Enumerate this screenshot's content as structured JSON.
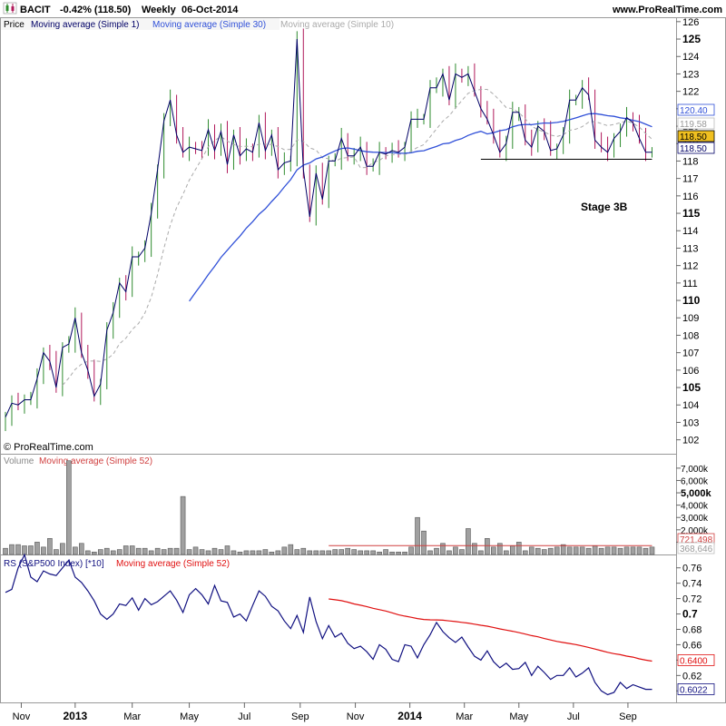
{
  "header": {
    "symbol": "BACIT",
    "change": "-0.42% (118.50)",
    "period": "Weekly",
    "date": "06-Oct-2014",
    "site": "www.ProRealTime.com"
  },
  "copyright": "© ProRealTime.com",
  "annotation": "Stage 3B",
  "colors": {
    "up": "#2e8b2e",
    "down": "#b0185a",
    "close_line": "#000033",
    "ma1": "#000066",
    "ma30": "#3050d8",
    "ma10": "#aaaaaa",
    "volume_bar": "#a0a0a0",
    "volume_ma": "#d04040",
    "rs_line": "#101080",
    "rs_ma": "#e01010",
    "price_tag": "#f0c020"
  },
  "chart_data": [
    {
      "type": "line",
      "panel": "price",
      "legend": [
        "Price",
        "Moving average (Simple 1)",
        "Moving average (Simple 30)",
        "Moving average (Simple 10)"
      ],
      "y_axis": {
        "min": 101.2,
        "max": 126.2,
        "ticks": [
          102,
          103,
          104,
          105,
          106,
          107,
          108,
          109,
          110,
          111,
          112,
          113,
          114,
          115,
          116,
          117,
          118,
          119,
          120,
          121,
          122,
          123,
          124,
          125,
          126
        ],
        "bold_ticks": [
          105,
          110,
          115,
          125
        ]
      },
      "x_axis": {
        "labels": [
          "Nov",
          "2013",
          "Mar",
          "May",
          "Jul",
          "Sep",
          "Nov",
          "2014",
          "Mar",
          "May",
          "Jul",
          "Sep"
        ],
        "label_positions": [
          2.5,
          11,
          20,
          29,
          37.7,
          46.5,
          55.2,
          63.8,
          72.4,
          81,
          89.6,
          98.2
        ],
        "bold_labels": [
          "2013",
          "2014"
        ],
        "total_weeks": 103
      },
      "weekly_close": [
        103.3,
        104.1,
        104.0,
        104.3,
        104.3,
        105.5,
        107.0,
        106.5,
        105.0,
        107.3,
        107.5,
        109.0,
        107.0,
        106.0,
        104.5,
        105.2,
        108.3,
        109.3,
        111.0,
        110.5,
        112.5,
        112.5,
        113.0,
        115.0,
        117.5,
        120.3,
        121.5,
        119.5,
        118.5,
        118.8,
        118.7,
        118.6,
        119.8,
        118.6,
        119.7,
        117.8,
        119.5,
        118.3,
        118.7,
        118.5,
        120.2,
        118.6,
        119.5,
        117.5,
        117.9,
        118.0,
        125.0,
        117.5,
        114.8,
        117.3,
        115.8,
        118.0,
        118.0,
        119.3,
        118.3,
        118.3,
        118.8,
        117.7,
        117.7,
        118.5,
        118.4,
        118.6,
        118.5,
        118.8,
        120.4,
        120.4,
        120.4,
        122.2,
        122.2,
        123.0,
        121.5,
        123.0,
        122.8,
        123.0,
        122.0,
        121.0,
        120.4,
        119.5,
        118.5,
        119.0,
        120.8,
        120.8,
        119.2,
        118.8,
        120.0,
        119.7,
        118.6,
        118.7,
        119.5,
        121.5,
        121.5,
        122.2,
        121.8,
        119.2,
        118.8,
        118.5,
        119.3,
        119.7,
        120.5,
        120.2,
        119.3,
        118.5,
        118.5
      ],
      "ma30_start_index": 29,
      "ma10_start_index": 9,
      "support_line": {
        "from_index": 75,
        "to_index": 102,
        "value": 118.1
      },
      "last_price_labels": [
        {
          "name": "Moving average (Simple 30)",
          "value": "120.40"
        },
        {
          "name": "Moving average (Simple 10)",
          "value": "119.58"
        },
        {
          "name": "Price",
          "value": "118.50"
        },
        {
          "name": "Moving average (Simple 1)",
          "value": "118.50"
        }
      ]
    },
    {
      "type": "bar",
      "panel": "volume",
      "legend": [
        "Volume",
        "Moving average (Simple 52)"
      ],
      "y_axis": {
        "ticks": [
          "1,000k",
          "2,000k",
          "3,000k",
          "4,000k",
          "5,000k",
          "6,000k",
          "7,000k"
        ],
        "tick_values": [
          1000,
          2000,
          3000,
          4000,
          5000,
          6000,
          7000
        ],
        "bold_ticks": [
          "5,000k"
        ],
        "max": 7800
      },
      "values": [
        500,
        800,
        800,
        700,
        700,
        1000,
        600,
        1300,
        400,
        900,
        7600,
        600,
        900,
        300,
        200,
        400,
        500,
        300,
        400,
        700,
        700,
        500,
        500,
        300,
        500,
        400,
        500,
        500,
        4700,
        400,
        600,
        400,
        300,
        500,
        400,
        700,
        300,
        200,
        300,
        300,
        300,
        400,
        200,
        300,
        600,
        800,
        400,
        500,
        300,
        300,
        300,
        300,
        400,
        400,
        500,
        400,
        300,
        300,
        300,
        200,
        400,
        200,
        200,
        200,
        600,
        3000,
        1900,
        300,
        500,
        900,
        300,
        600,
        400,
        2100,
        900,
        300,
        1300,
        600,
        900,
        300,
        700,
        1000,
        300,
        600,
        500,
        400,
        500,
        600,
        800,
        600,
        600,
        600,
        500,
        700,
        500,
        600,
        600,
        500,
        600,
        600,
        600,
        500,
        600
      ],
      "ma52_start_index": 51,
      "ma52_value": 721,
      "last_labels": [
        {
          "name": "Moving average (Simple 52)",
          "value": "721,498"
        },
        {
          "name": "Volume",
          "value": "368,646"
        }
      ]
    },
    {
      "type": "line",
      "panel": "rs",
      "legend": [
        "RS (S&P500 Index) [*10]",
        "Moving average (Simple 52)"
      ],
      "y_axis": {
        "min": 0.585,
        "max": 0.775,
        "ticks": [
          0.6,
          0.62,
          0.64,
          0.66,
          0.68,
          0.7,
          0.72,
          0.74,
          0.76
        ],
        "tick_labels": [
          "0.6",
          "0.62",
          "0.64",
          "0.66",
          "0.68",
          "0.7",
          "0.72",
          "0.74",
          "0.76"
        ],
        "bold_ticks": [
          0.7
        ]
      },
      "values": [
        0.728,
        0.732,
        0.76,
        0.777,
        0.748,
        0.742,
        0.756,
        0.752,
        0.75,
        0.76,
        0.77,
        0.748,
        0.741,
        0.73,
        0.717,
        0.7,
        0.693,
        0.7,
        0.713,
        0.711,
        0.721,
        0.705,
        0.72,
        0.712,
        0.716,
        0.723,
        0.73,
        0.718,
        0.702,
        0.725,
        0.733,
        0.725,
        0.713,
        0.737,
        0.717,
        0.715,
        0.696,
        0.7,
        0.691,
        0.711,
        0.73,
        0.723,
        0.71,
        0.704,
        0.691,
        0.681,
        0.698,
        0.676,
        0.722,
        0.69,
        0.668,
        0.685,
        0.67,
        0.675,
        0.662,
        0.655,
        0.658,
        0.651,
        0.641,
        0.66,
        0.654,
        0.641,
        0.638,
        0.66,
        0.658,
        0.643,
        0.66,
        0.673,
        0.689,
        0.677,
        0.669,
        0.663,
        0.67,
        0.657,
        0.645,
        0.64,
        0.652,
        0.638,
        0.63,
        0.636,
        0.628,
        0.629,
        0.637,
        0.62,
        0.632,
        0.624,
        0.615,
        0.62,
        0.62,
        0.63,
        0.618,
        0.623,
        0.63,
        0.611,
        0.6,
        0.595,
        0.598,
        0.611,
        0.603,
        0.608,
        0.605,
        0.602,
        0.602
      ],
      "ma52_start_index": 51,
      "ma52_end_value": 0.64,
      "last_labels": [
        {
          "name": "Moving average (Simple 52)",
          "value": "0.6400"
        },
        {
          "name": "RS (S&P500 Index) [*10]",
          "value": "0.6022"
        }
      ]
    }
  ]
}
